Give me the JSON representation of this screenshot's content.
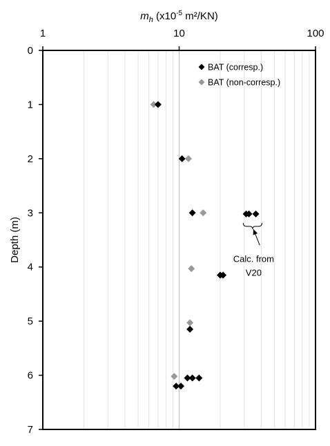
{
  "chart_data": {
    "type": "scatter",
    "x_axis": {
      "label_var": "m",
      "label_sub": "h",
      "label_unit_prefix": " (x10",
      "label_exp": "-5",
      "label_unit_suffix": " m²/KN)",
      "scale": "log",
      "range": [
        1,
        100
      ],
      "position": "top",
      "ticks": [
        1,
        10,
        100
      ],
      "tick_labels": [
        "1",
        "10",
        "100"
      ]
    },
    "y_axis": {
      "label": "Depth (m)",
      "inverted": true,
      "range": [
        0,
        7
      ],
      "ticks": [
        0,
        1,
        2,
        3,
        4,
        5,
        6,
        7
      ],
      "tick_labels": [
        "0",
        "1",
        "2",
        "3",
        "4",
        "5",
        "6",
        "7"
      ]
    },
    "grid": {
      "vertical_minor": true,
      "vertical_major": true,
      "horizontal": false
    },
    "legend": {
      "placement": "top-right"
    },
    "series": [
      {
        "name": "BAT (corresp.)",
        "color": "#000000",
        "marker": "diamond",
        "points": [
          {
            "x": 7.0,
            "y": 1.0
          },
          {
            "x": 10.5,
            "y": 2.0
          },
          {
            "x": 12.5,
            "y": 3.0
          },
          {
            "x": 31.0,
            "y": 3.02
          },
          {
            "x": 32.5,
            "y": 3.02
          },
          {
            "x": 36.5,
            "y": 3.02
          },
          {
            "x": 20.0,
            "y": 4.15
          },
          {
            "x": 21.0,
            "y": 4.15
          },
          {
            "x": 12.0,
            "y": 5.15
          },
          {
            "x": 11.5,
            "y": 6.05
          },
          {
            "x": 12.5,
            "y": 6.05
          },
          {
            "x": 14.0,
            "y": 6.05
          },
          {
            "x": 9.5,
            "y": 6.2
          },
          {
            "x": 10.3,
            "y": 6.2
          }
        ]
      },
      {
        "name": "BAT (non-corresp.)",
        "color": "#999999",
        "marker": "diamond",
        "points": [
          {
            "x": 6.5,
            "y": 1.0
          },
          {
            "x": 11.7,
            "y": 2.0
          },
          {
            "x": 15.0,
            "y": 3.0
          },
          {
            "x": 12.3,
            "y": 4.03
          },
          {
            "x": 12.0,
            "y": 5.03
          },
          {
            "x": 9.2,
            "y": 6.02
          }
        ]
      }
    ],
    "annotations": [
      {
        "lines": [
          "Calc. from",
          "V20"
        ],
        "x": 36,
        "y": 3.65,
        "bracket": {
          "x_from": 29.5,
          "x_to": 40.5,
          "y": 3.25
        },
        "arrow": {
          "from_x": 39,
          "from_y": 3.6,
          "to_x": 35,
          "to_y": 3.3
        }
      }
    ]
  }
}
